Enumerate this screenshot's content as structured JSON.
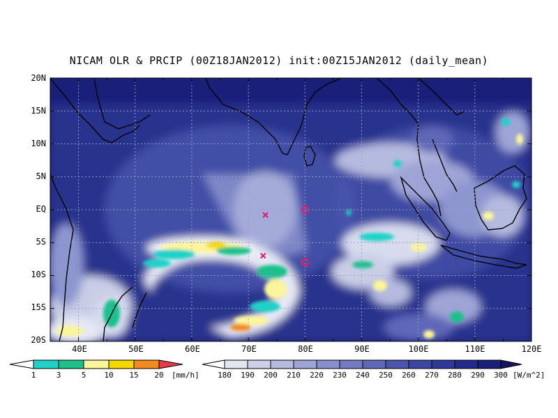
{
  "title": "NICAM OLR & PRCIP (00Z18JAN2012) init:00Z15JAN2012 (daily_mean)",
  "map": {
    "lon_range": [
      35,
      120
    ],
    "lat_range": [
      -20,
      20
    ],
    "lat_labels": [
      "20N",
      "15N",
      "10N",
      "5N",
      "EQ",
      "5S",
      "10S",
      "15S",
      "20S"
    ],
    "lon_labels": [
      "40E",
      "50E",
      "60E",
      "70E",
      "80E",
      "90E",
      "100E",
      "110E",
      "120E"
    ],
    "grid": "dotted",
    "background_color": "#1a1f7a",
    "coastline_color": "#000000",
    "markers": [
      {
        "type": "x-marker",
        "lon": 73.0,
        "lat": -0.8,
        "color": "#e0206e"
      },
      {
        "type": "x-marker",
        "lon": 72.6,
        "lat": -7.0,
        "color": "#e0206e"
      },
      {
        "type": "circle-marker",
        "lon": 80.0,
        "lat": 0.0,
        "color": "#e0206e"
      },
      {
        "type": "circle-marker",
        "lon": 80.0,
        "lat": -8.0,
        "color": "#e0206e"
      }
    ]
  },
  "precip_legend": {
    "ticks": [
      "1",
      "3",
      "5",
      "10",
      "15",
      "20"
    ],
    "unit": "[mm/h]",
    "colors": [
      "#ffffff",
      "#1fd2c8",
      "#1fc08c",
      "#fbf59b",
      "#f5d800",
      "#f28a1e",
      "#e8384a"
    ]
  },
  "olr_legend": {
    "ticks": [
      "180",
      "190",
      "200",
      "210",
      "220",
      "230",
      "240",
      "250",
      "260",
      "270",
      "280",
      "290",
      "300"
    ],
    "unit": "[W/m^2]",
    "colors": [
      "#ffffff",
      "#e4e5f2",
      "#cdd0e8",
      "#b5badf",
      "#9ea4d6",
      "#878fcc",
      "#737cc3",
      "#5f68b8",
      "#4c55ad",
      "#3c46a3",
      "#2e3898",
      "#222b8c",
      "#1a1f7a",
      "#141660"
    ]
  }
}
